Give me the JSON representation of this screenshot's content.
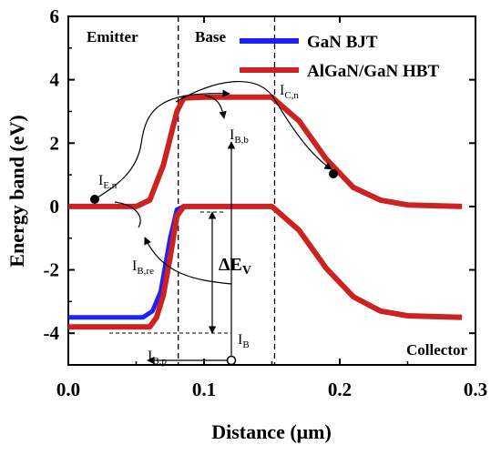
{
  "chart_data": {
    "type": "line",
    "xlabel": "Distance (μm)",
    "ylabel": "Energy band (eV)",
    "xlim": [
      0.0,
      0.3
    ],
    "ylim": [
      -5.0,
      6.0
    ],
    "xticks": [
      "0.0",
      "0.1",
      "0.2",
      "0.3"
    ],
    "yticks": [
      "-4",
      "-2",
      "0",
      "2",
      "4",
      "6"
    ],
    "legend_position": "top-right",
    "grid": false,
    "regions": {
      "emitter": "Emitter",
      "base": "Base",
      "collector": "Collector"
    },
    "boundaries": [
      0.081,
      0.152
    ],
    "series": [
      {
        "name": "GaN BJT",
        "color": "#1f1fff",
        "conduction_band": [
          [
            0.0,
            0.0
          ],
          [
            0.05,
            0.0
          ],
          [
            0.06,
            0.2
          ],
          [
            0.07,
            1.3
          ],
          [
            0.08,
            3.0
          ],
          [
            0.085,
            3.42
          ],
          [
            0.1,
            3.45
          ],
          [
            0.15,
            3.45
          ],
          [
            0.17,
            2.7
          ],
          [
            0.19,
            1.5
          ],
          [
            0.21,
            0.6
          ],
          [
            0.23,
            0.2
          ],
          [
            0.25,
            0.05
          ],
          [
            0.29,
            0.0
          ]
        ],
        "valence_band": [
          [
            0.0,
            -3.5
          ],
          [
            0.055,
            -3.5
          ],
          [
            0.062,
            -3.3
          ],
          [
            0.068,
            -2.7
          ],
          [
            0.075,
            -1.0
          ],
          [
            0.08,
            -0.1
          ],
          [
            0.085,
            0.0
          ],
          [
            0.15,
            0.0
          ],
          [
            0.17,
            -0.75
          ],
          [
            0.19,
            -1.95
          ],
          [
            0.21,
            -2.85
          ],
          [
            0.23,
            -3.3
          ],
          [
            0.25,
            -3.45
          ],
          [
            0.29,
            -3.5
          ]
        ]
      },
      {
        "name": "AlGaN/GaN HBT",
        "color": "#cc2222",
        "conduction_band": [
          [
            0.0,
            0.0
          ],
          [
            0.05,
            0.0
          ],
          [
            0.06,
            0.2
          ],
          [
            0.07,
            1.3
          ],
          [
            0.08,
            3.0
          ],
          [
            0.085,
            3.42
          ],
          [
            0.1,
            3.45
          ],
          [
            0.15,
            3.45
          ],
          [
            0.17,
            2.7
          ],
          [
            0.19,
            1.5
          ],
          [
            0.21,
            0.6
          ],
          [
            0.23,
            0.2
          ],
          [
            0.25,
            0.05
          ],
          [
            0.29,
            0.0
          ]
        ],
        "valence_band": [
          [
            0.0,
            -3.8
          ],
          [
            0.06,
            -3.8
          ],
          [
            0.065,
            -3.5
          ],
          [
            0.07,
            -2.8
          ],
          [
            0.075,
            -1.6
          ],
          [
            0.08,
            -0.3
          ],
          [
            0.085,
            0.0
          ],
          [
            0.15,
            0.0
          ],
          [
            0.17,
            -0.75
          ],
          [
            0.19,
            -1.95
          ],
          [
            0.21,
            -2.85
          ],
          [
            0.23,
            -3.3
          ],
          [
            0.25,
            -3.45
          ],
          [
            0.29,
            -3.5
          ]
        ]
      }
    ],
    "annotations": {
      "i_en": {
        "main": "I",
        "sub": "E,n"
      },
      "i_cn": {
        "main": "I",
        "sub": "C,n"
      },
      "i_bb": {
        "main": "I",
        "sub": "B,b"
      },
      "i_bre": {
        "main": "I",
        "sub": "B,re"
      },
      "i_b": {
        "main": "I",
        "sub": "B"
      },
      "i_bp": {
        "main": "I",
        "sub": "B,p"
      },
      "delta_ev": {
        "main": "ΔE",
        "sub": "V"
      }
    }
  }
}
